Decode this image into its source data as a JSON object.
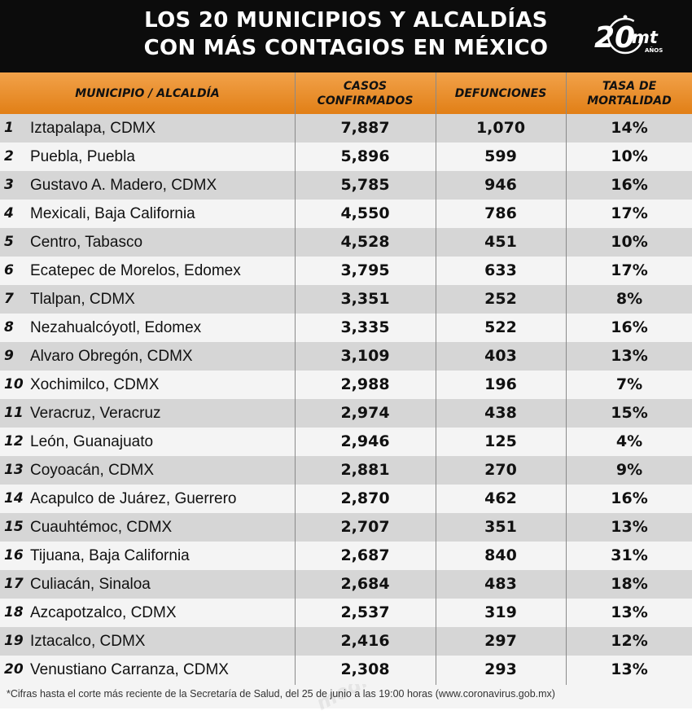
{
  "header": {
    "title_line1": "LOS 20 MUNICIPIOS Y ALCALDÍAS",
    "title_line2": "CON MÁS CONTAGIOS EN MÉXICO",
    "logo_number": "20",
    "logo_text": "mt",
    "logo_subtext": "AÑOS",
    "watermark": "mediotiempo"
  },
  "chart_data": {
    "type": "table",
    "title": "LOS 20 MUNICIPIOS Y ALCALDÍAS CON MÁS CONTAGIOS EN MÉXICO",
    "columns": {
      "municipio": "MUNICIPIO / ALCALDÍA",
      "casos_line1": "CASOS",
      "casos_line2": "CONFIRMADOS",
      "defunciones": "DEFUNCIONES",
      "tasa_line1": "TASA DE",
      "tasa_line2": "MORTALIDAD"
    },
    "rows": [
      {
        "rank": "1",
        "name": "Iztapalapa, CDMX",
        "casos": "7,887",
        "defunciones": "1,070",
        "tasa": "14%"
      },
      {
        "rank": "2",
        "name": "Puebla, Puebla",
        "casos": "5,896",
        "defunciones": "599",
        "tasa": "10%"
      },
      {
        "rank": "3",
        "name": "Gustavo A. Madero, CDMX",
        "casos": "5,785",
        "defunciones": "946",
        "tasa": "16%"
      },
      {
        "rank": "4",
        "name": "Mexicali, Baja California",
        "casos": "4,550",
        "defunciones": "786",
        "tasa": "17%"
      },
      {
        "rank": "5",
        "name": "Centro, Tabasco",
        "casos": "4,528",
        "defunciones": "451",
        "tasa": "10%"
      },
      {
        "rank": "6",
        "name": "Ecatepec de Morelos, Edomex",
        "casos": "3,795",
        "defunciones": "633",
        "tasa": "17%"
      },
      {
        "rank": "7",
        "name": "Tlalpan, CDMX",
        "casos": "3,351",
        "defunciones": "252",
        "tasa": "8%"
      },
      {
        "rank": "8",
        "name": "Nezahualcóyotl, Edomex",
        "casos": "3,335",
        "defunciones": "522",
        "tasa": "16%"
      },
      {
        "rank": "9",
        "name": "Alvaro Obregón, CDMX",
        "casos": "3,109",
        "defunciones": "403",
        "tasa": "13%"
      },
      {
        "rank": "10",
        "name": "Xochimilco, CDMX",
        "casos": "2,988",
        "defunciones": "196",
        "tasa": "7%"
      },
      {
        "rank": "11",
        "name": "Veracruz, Veracruz",
        "casos": "2,974",
        "defunciones": "438",
        "tasa": "15%"
      },
      {
        "rank": "12",
        "name": "León, Guanajuato",
        "casos": "2,946",
        "defunciones": "125",
        "tasa": "4%"
      },
      {
        "rank": "13",
        "name": "Coyoacán, CDMX",
        "casos": "2,881",
        "defunciones": "270",
        "tasa": "9%"
      },
      {
        "rank": "14",
        "name": "Acapulco de Juárez, Guerrero",
        "casos": "2,870",
        "defunciones": "462",
        "tasa": "16%"
      },
      {
        "rank": "15",
        "name": "Cuauhtémoc, CDMX",
        "casos": "2,707",
        "defunciones": "351",
        "tasa": "13%"
      },
      {
        "rank": "16",
        "name": "Tijuana, Baja California",
        "casos": "2,687",
        "defunciones": "840",
        "tasa": "31%"
      },
      {
        "rank": "17",
        "name": "Culiacán, Sinaloa",
        "casos": "2,684",
        "defunciones": "483",
        "tasa": "18%"
      },
      {
        "rank": "18",
        "name": "Azcapotzalco, CDMX",
        "casos": "2,537",
        "defunciones": "319",
        "tasa": "13%"
      },
      {
        "rank": "19",
        "name": "Iztacalco, CDMX",
        "casos": "2,416",
        "defunciones": "297",
        "tasa": "12%"
      },
      {
        "rank": "20",
        "name": "Venustiano Carranza, CDMX",
        "casos": "2,308",
        "defunciones": "293",
        "tasa": "13%"
      }
    ]
  },
  "footnote": "*Cifras hasta el corte más reciente de la Secretaría de Salud, del 25 de junio a las 19:00 horas (www.coronavirus.gob.mx)",
  "colors": {
    "header_bg": "#0c0c0c",
    "table_header_top": "#f2a24a",
    "table_header_bottom": "#e17f16",
    "row_shaded": "#d6d6d6",
    "row_light": "#f4f4f4"
  }
}
